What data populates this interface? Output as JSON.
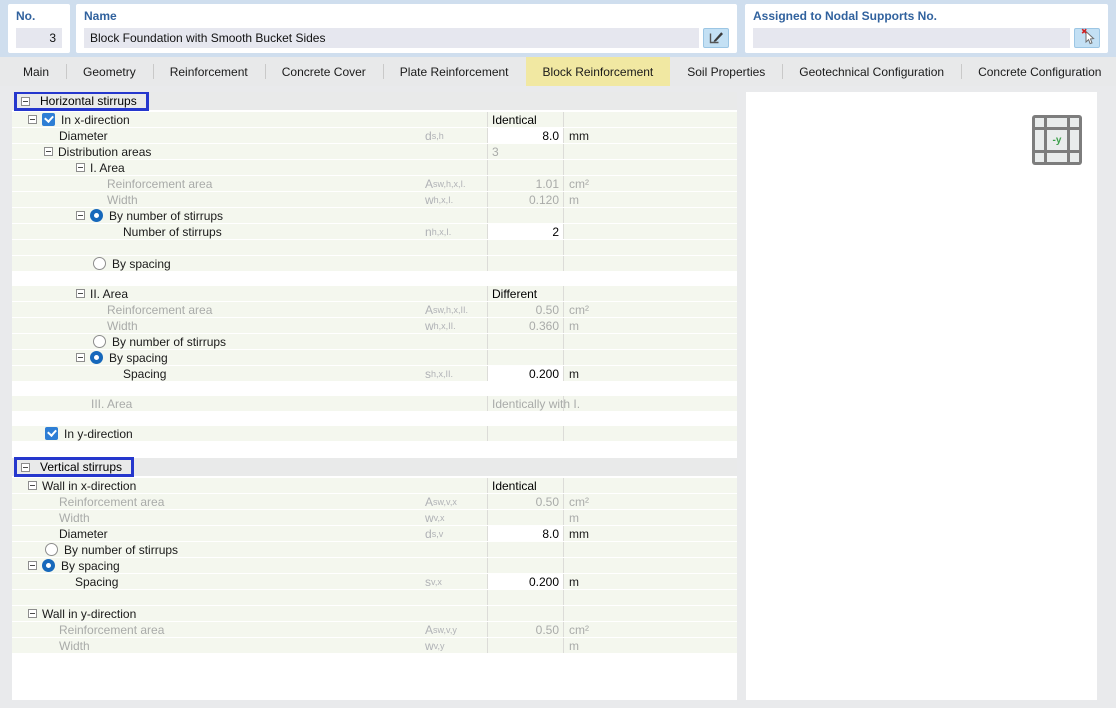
{
  "header": {
    "no_label": "No.",
    "no_value": "3",
    "name_label": "Name",
    "name_value": "Block Foundation with Smooth Bucket Sides",
    "assigned_label": "Assigned to Nodal Supports No.",
    "assigned_value": "",
    "edit_button_icon": "rename-pencil-icon",
    "pick_button_icon": "select-cursor-icon"
  },
  "tabs": {
    "items": [
      "Main",
      "Geometry",
      "Reinforcement",
      "Concrete Cover",
      "Plate Reinforcement",
      "Block Reinforcement",
      "Soil Properties",
      "Geotechnical Configuration",
      "Concrete Configuration"
    ],
    "active": "Block Reinforcement"
  },
  "colors": {
    "topbar_bg": "#cfdeee",
    "active_tab": "#f1e8a2",
    "row_bg": "#f4f7ee",
    "section_bg": "#e9eaea",
    "selection_box_blue": "#2537cd",
    "control_blue": "#2e7ed5",
    "muted_text": "#a9aba9",
    "label_blue": "#31629e"
  },
  "preview": {
    "icon": "plan-grid-icon",
    "axis_label": "-y"
  },
  "table": {
    "sections": [
      {
        "title": "Horizontal stirrups",
        "rows": [
          {
            "kind": "row",
            "ind": 16,
            "exp": true,
            "ctrl": "check",
            "label": "In x-direction",
            "vtext": "Identical"
          },
          {
            "kind": "row",
            "ind": 47,
            "label": "Diameter",
            "sym": "d",
            "sub": "s,h",
            "val": "8.0",
            "vstyle": "edit",
            "unit": "mm"
          },
          {
            "kind": "row",
            "ind": 32,
            "exp": true,
            "label": "Distribution areas",
            "vtext_muted": "3"
          },
          {
            "kind": "row",
            "ind": 64,
            "exp": true,
            "label": "I. Area"
          },
          {
            "kind": "row",
            "ind": 95,
            "muted": true,
            "label": "Reinforcement area",
            "sym": "A",
            "sub": "sw,h,x,I.",
            "val": "1.01",
            "vstyle": "ro",
            "unit": "cm²",
            "unit_muted": true
          },
          {
            "kind": "row",
            "ind": 95,
            "muted": true,
            "label": "Width",
            "sym": "w",
            "sub": "h,x,I.",
            "val": "0.120",
            "vstyle": "ro",
            "unit": "m",
            "unit_muted": true
          },
          {
            "kind": "row",
            "ind": 64,
            "exp": true,
            "ctrl": "radio-on",
            "label": "By number of stirrups"
          },
          {
            "kind": "row",
            "ind": 111,
            "label": "Number of stirrups",
            "sym": "n",
            "sub": "h,x,I.",
            "val": "2",
            "vstyle": "edit"
          },
          {
            "kind": "blank"
          },
          {
            "kind": "row",
            "ind": 81,
            "ctrl": "radio-off",
            "label": "By spacing"
          },
          {
            "kind": "gap",
            "h": 14
          },
          {
            "kind": "row",
            "ind": 64,
            "exp": true,
            "label": "II. Area",
            "vtext": "Different"
          },
          {
            "kind": "row",
            "ind": 95,
            "muted": true,
            "label": "Reinforcement area",
            "sym": "A",
            "sub": "sw,h,x,II.",
            "val": "0.50",
            "vstyle": "ro",
            "unit": "cm²",
            "unit_muted": true
          },
          {
            "kind": "row",
            "ind": 95,
            "muted": true,
            "label": "Width",
            "sym": "w",
            "sub": "h,x,II.",
            "val": "0.360",
            "vstyle": "ro",
            "unit": "m",
            "unit_muted": true
          },
          {
            "kind": "row",
            "ind": 81,
            "ctrl": "radio-off",
            "label": "By number of stirrups"
          },
          {
            "kind": "row",
            "ind": 64,
            "exp": true,
            "ctrl": "radio-on",
            "label": "By spacing"
          },
          {
            "kind": "row",
            "ind": 111,
            "label": "Spacing",
            "sym": "s",
            "sub": "h,x,II.",
            "val": "0.200",
            "vstyle": "edit",
            "unit": "m"
          },
          {
            "kind": "gap",
            "h": 14
          },
          {
            "kind": "row",
            "ind": 79,
            "muted": true,
            "label": "III. Area",
            "vtext_muted": "Identically with I."
          },
          {
            "kind": "gap",
            "h": 14
          },
          {
            "kind": "row",
            "ind": 33,
            "ctrl": "check",
            "label": "In y-direction"
          },
          {
            "kind": "gap",
            "h": 16
          }
        ]
      },
      {
        "title": "Vertical stirrups",
        "rows": [
          {
            "kind": "row",
            "ind": 16,
            "exp": true,
            "label": "Wall in x-direction",
            "vtext": "Identical"
          },
          {
            "kind": "row",
            "ind": 47,
            "muted": true,
            "label": "Reinforcement area",
            "sym": "A",
            "sub": "sw,v,x",
            "val": "0.50",
            "vstyle": "ro",
            "unit": "cm²",
            "unit_muted": true
          },
          {
            "kind": "row",
            "ind": 47,
            "muted": true,
            "label": "Width",
            "sym": "w",
            "sub": "v,x",
            "val": "",
            "vstyle": "ro",
            "unit": "m",
            "unit_muted": true
          },
          {
            "kind": "row",
            "ind": 47,
            "label": "Diameter",
            "sym": "d",
            "sub": "s,v",
            "val": "8.0",
            "vstyle": "edit",
            "unit": "mm"
          },
          {
            "kind": "row",
            "ind": 33,
            "ctrl": "radio-off",
            "label": "By number of stirrups"
          },
          {
            "kind": "row",
            "ind": 16,
            "exp": true,
            "ctrl": "radio-on",
            "label": "By spacing"
          },
          {
            "kind": "row",
            "ind": 63,
            "label": "Spacing",
            "sym": "s",
            "sub": "v,x",
            "val": "0.200",
            "vstyle": "edit",
            "unit": "m"
          },
          {
            "kind": "blank"
          },
          {
            "kind": "row",
            "ind": 16,
            "exp": true,
            "label": "Wall in y-direction"
          },
          {
            "kind": "row",
            "ind": 47,
            "muted": true,
            "label": "Reinforcement area",
            "sym": "A",
            "sub": "sw,v,y",
            "val": "0.50",
            "vstyle": "ro",
            "unit": "cm²",
            "unit_muted": true
          },
          {
            "kind": "row",
            "ind": 47,
            "muted": true,
            "label": "Width",
            "sym": "w",
            "sub": "v,y",
            "val": "",
            "vstyle": "ro",
            "unit": "m",
            "unit_muted": true
          }
        ]
      }
    ]
  }
}
